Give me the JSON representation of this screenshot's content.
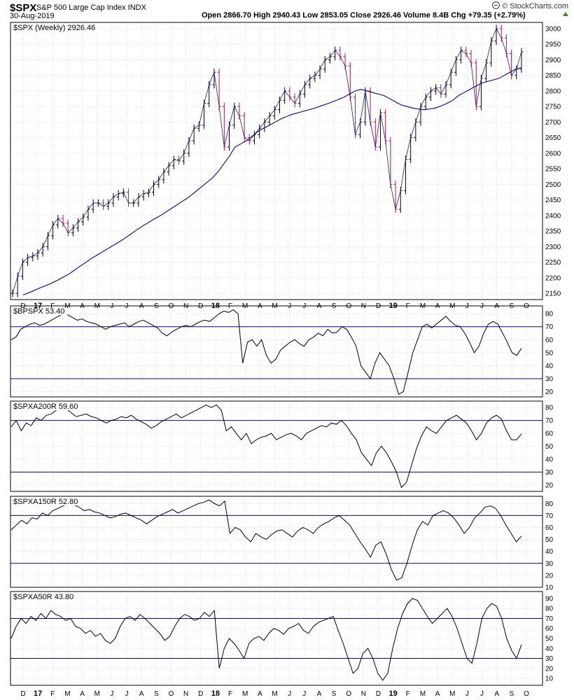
{
  "header": {
    "symbol": "$SPX",
    "name": "S&P 500 Large Cap Index INDX",
    "date": "30-Aug-2019",
    "ohlc": "Open 2866.70  High 2940.43  Low 2853.05  Close 2926.46  Volume 8.4B  Chg +79.35 (+2.79%)",
    "credit": "© StockCharts.com",
    "logo_icon": "stockcharts-logo-icon",
    "collapse_icon": "triangle-up-icon"
  },
  "colors": {
    "up_bar": "#000000",
    "down_bar": "#b0144a",
    "ma_line": "#1a1a7a",
    "ref_line": "#0a0a6a",
    "grid": "#c8c8c8",
    "indicator_line": "#000000",
    "collapse_icon": "#4b7a2d"
  },
  "x_axis": [
    "D",
    "17",
    "F",
    "M",
    "A",
    "M",
    "J",
    "J",
    "A",
    "S",
    "O",
    "N",
    "D",
    "18",
    "F",
    "M",
    "A",
    "M",
    "J",
    "J",
    "A",
    "S",
    "O",
    "N",
    "D",
    "19",
    "F",
    "M",
    "A",
    "M",
    "J",
    "J",
    "A",
    "S",
    "O"
  ],
  "x_axis_bold": [
    "17",
    "18",
    "19"
  ],
  "chart_data": [
    {
      "type": "line",
      "subtype": "ohlc-bars",
      "title": "$SPX (Weekly) 2926.46",
      "ylim": [
        2130,
        3020
      ],
      "ticks": [
        2150,
        2200,
        2250,
        2300,
        2350,
        2400,
        2450,
        2500,
        2550,
        2600,
        2650,
        2700,
        2750,
        2800,
        2850,
        2900,
        2950,
        3000
      ],
      "grid": true,
      "series": [
        {
          "values": [
            2150,
            2205,
            2250,
            2265,
            2270,
            2280,
            2300,
            2335,
            2370,
            2390,
            2375,
            2345,
            2360,
            2380,
            2395,
            2420,
            2440,
            2440,
            2430,
            2440,
            2460,
            2470,
            2475,
            2440,
            2440,
            2460,
            2470,
            2475,
            2500,
            2515,
            2540,
            2560,
            2580,
            2575,
            2600,
            2640,
            2680,
            2690,
            2760,
            2820,
            2860,
            2750,
            2620,
            2690,
            2750,
            2720,
            2650,
            2640,
            2660,
            2680,
            2700,
            2720,
            2740,
            2770,
            2800,
            2780,
            2760,
            2790,
            2820,
            2840,
            2850,
            2870,
            2900,
            2910,
            2930,
            2910,
            2880,
            2780,
            2660,
            2700,
            2800,
            2700,
            2620,
            2730,
            2640,
            2500,
            2420,
            2480,
            2580,
            2650,
            2700,
            2750,
            2780,
            2800,
            2810,
            2790,
            2820,
            2860,
            2900,
            2930,
            2920,
            2890,
            2750,
            2840,
            2890,
            2960,
            3000,
            2970,
            2920,
            2850,
            2870,
            2926
          ]
        },
        {
          "values": [
            2145,
            2152,
            2160,
            2168,
            2175,
            2183,
            2192,
            2202,
            2212,
            2225,
            2238,
            2250,
            2263,
            2274,
            2285,
            2296,
            2307,
            2318,
            2330,
            2343,
            2356,
            2368,
            2379,
            2390,
            2400,
            2412,
            2424,
            2436,
            2448,
            2460,
            2475,
            2490,
            2505,
            2520,
            2540,
            2565,
            2590,
            2620,
            2630,
            2640,
            2655,
            2670,
            2680,
            2690,
            2700,
            2710,
            2718,
            2725,
            2730,
            2735,
            2740,
            2745,
            2752,
            2758,
            2765,
            2772,
            2780,
            2790,
            2800,
            2805,
            2800,
            2795,
            2790,
            2785,
            2775,
            2765,
            2755,
            2750,
            2745,
            2742,
            2740,
            2742,
            2745,
            2752,
            2760,
            2770,
            2785,
            2795,
            2805,
            2815,
            2825,
            2830,
            2835,
            2840,
            2850,
            2860,
            2870,
            2875
          ]
        }
      ]
    },
    {
      "type": "line",
      "title": "$BPSPX 53.40",
      "ylim": [
        16,
        86
      ],
      "ticks": [
        20,
        30,
        40,
        50,
        60,
        70,
        80
      ],
      "ref_lines": [
        70,
        30
      ],
      "series": [
        {
          "values": [
            60,
            62,
            68,
            70,
            72,
            73,
            71,
            72,
            74,
            76,
            78,
            80,
            79,
            77,
            75,
            76,
            74,
            73,
            72,
            70,
            68,
            70,
            71,
            72,
            73,
            70,
            72,
            74,
            75,
            73,
            71,
            69,
            65,
            63,
            66,
            68,
            70,
            71,
            70,
            72,
            74,
            75,
            74,
            77,
            80,
            82,
            81,
            83,
            80,
            42,
            58,
            60,
            55,
            60,
            48,
            42,
            45,
            52,
            55,
            58,
            60,
            57,
            55,
            60,
            62,
            65,
            63,
            68,
            65,
            66,
            70,
            68,
            62,
            55,
            40,
            35,
            30,
            42,
            50,
            45,
            40,
            30,
            18,
            20,
            35,
            50,
            60,
            70,
            72,
            69,
            72,
            75,
            78,
            74,
            71,
            70,
            65,
            58,
            50,
            55,
            65,
            72,
            74,
            72,
            65,
            58,
            50,
            48,
            53.4
          ]
        }
      ]
    },
    {
      "type": "line",
      "title": "$SPXA200R 59.60",
      "ylim": [
        15,
        85
      ],
      "ticks": [
        20,
        30,
        40,
        50,
        60,
        70,
        80
      ],
      "ref_lines": [
        70,
        30
      ],
      "series": [
        {
          "values": [
            65,
            70,
            62,
            68,
            66,
            72,
            70,
            74,
            75,
            78,
            80,
            79,
            76,
            73,
            74,
            75,
            73,
            72,
            70,
            68,
            70,
            71,
            73,
            72,
            74,
            71,
            69,
            67,
            64,
            66,
            69,
            71,
            73,
            75,
            72,
            74,
            76,
            78,
            80,
            82,
            80,
            82,
            78,
            62,
            65,
            60,
            55,
            60,
            52,
            55,
            57,
            58,
            60,
            55,
            57,
            59,
            60,
            58,
            55,
            60,
            62,
            64,
            66,
            65,
            68,
            67,
            70,
            66,
            60,
            55,
            45,
            40,
            35,
            45,
            50,
            45,
            38,
            30,
            18,
            22,
            35,
            48,
            58,
            65,
            62,
            60,
            65,
            70,
            72,
            74,
            71,
            68,
            62,
            55,
            60,
            68,
            72,
            74,
            71,
            62,
            55,
            55,
            59.6
          ]
        }
      ]
    },
    {
      "type": "line",
      "title": "$SPXA150R 52.80",
      "ylim": [
        10,
        86
      ],
      "ticks": [
        10,
        20,
        30,
        40,
        50,
        60,
        70,
        80
      ],
      "ref_lines": [
        70,
        30
      ],
      "series": [
        {
          "values": [
            58,
            62,
            66,
            63,
            68,
            67,
            72,
            70,
            74,
            76,
            78,
            80,
            79,
            77,
            74,
            75,
            73,
            72,
            70,
            68,
            69,
            71,
            72,
            70,
            68,
            66,
            63,
            66,
            69,
            71,
            73,
            75,
            72,
            74,
            76,
            78,
            80,
            81,
            83,
            80,
            78,
            82,
            55,
            60,
            58,
            52,
            48,
            55,
            52,
            50,
            54,
            57,
            58,
            55,
            52,
            57,
            60,
            58,
            55,
            60,
            63,
            65,
            68,
            70,
            66,
            62,
            55,
            48,
            42,
            35,
            45,
            48,
            38,
            25,
            16,
            18,
            30,
            45,
            58,
            65,
            62,
            70,
            72,
            74,
            72,
            68,
            62,
            55,
            60,
            68,
            72,
            77,
            78,
            76,
            70,
            62,
            55,
            48,
            52.8
          ]
        }
      ]
    },
    {
      "type": "line",
      "title": "$SPXA50R 43.80",
      "ylim": [
        3,
        97
      ],
      "ticks": [
        10,
        20,
        30,
        40,
        50,
        60,
        70,
        80,
        90
      ],
      "ref_lines": [
        70,
        30
      ],
      "series": [
        {
          "values": [
            50,
            62,
            70,
            65,
            72,
            68,
            75,
            70,
            78,
            74,
            72,
            68,
            70,
            62,
            60,
            55,
            58,
            52,
            55,
            48,
            45,
            50,
            62,
            70,
            72,
            68,
            74,
            70,
            65,
            60,
            55,
            48,
            52,
            62,
            70,
            74,
            72,
            68,
            70,
            76,
            72,
            78,
            20,
            40,
            50,
            45,
            38,
            30,
            45,
            50,
            52,
            48,
            55,
            60,
            58,
            54,
            60,
            62,
            65,
            58,
            55,
            62,
            66,
            68,
            70,
            72,
            58,
            45,
            30,
            15,
            20,
            35,
            40,
            30,
            15,
            8,
            15,
            40,
            60,
            75,
            85,
            90,
            88,
            80,
            72,
            65,
            70,
            75,
            80,
            72,
            60,
            45,
            30,
            25,
            45,
            70,
            80,
            85,
            82,
            70,
            50,
            38,
            30,
            43.8
          ]
        }
      ]
    }
  ]
}
